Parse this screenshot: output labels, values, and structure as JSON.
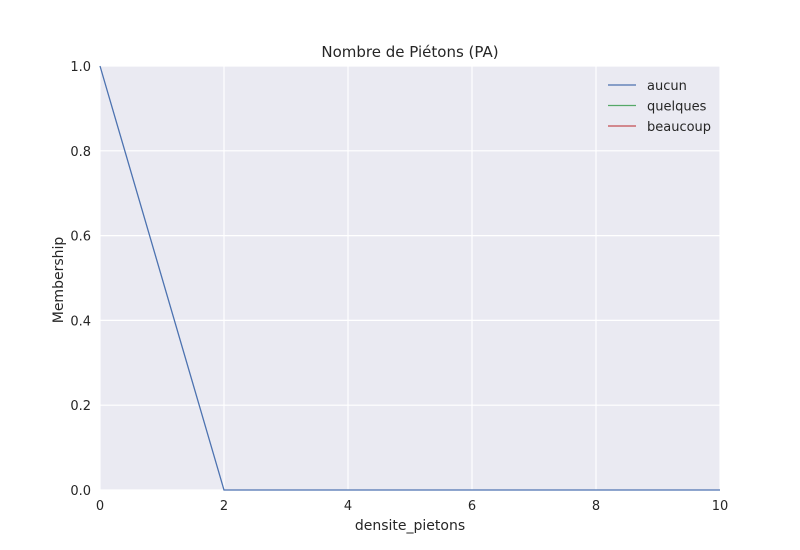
{
  "chart_data": {
    "type": "line",
    "title": "Nombre de Piétons (PA)",
    "xlabel": "densite_pietons",
    "ylabel": "Membership",
    "xlim": [
      0,
      10
    ],
    "ylim": [
      0,
      1
    ],
    "xticks": [
      0,
      2,
      4,
      6,
      8,
      10
    ],
    "xtick_labels": [
      "0",
      "2",
      "4",
      "6",
      "8",
      "10"
    ],
    "yticks": [
      0,
      0.2,
      0.4,
      0.6,
      0.8,
      1
    ],
    "ytick_labels": [
      "0.0",
      "0.2",
      "0.4",
      "0.6",
      "0.8",
      "1.0"
    ],
    "grid": true,
    "legend_position": "top-right",
    "series": [
      {
        "name": "aucun",
        "color": "#4c72b0",
        "x": [
          0,
          2,
          10
        ],
        "y": [
          1,
          0,
          0
        ]
      },
      {
        "name": "quelques",
        "color": "#55a868",
        "x": [],
        "y": []
      },
      {
        "name": "beaucoup",
        "color": "#c44e52",
        "x": [],
        "y": []
      }
    ],
    "background_color": "#eaeaf2",
    "grid_color": "#ffffff"
  }
}
